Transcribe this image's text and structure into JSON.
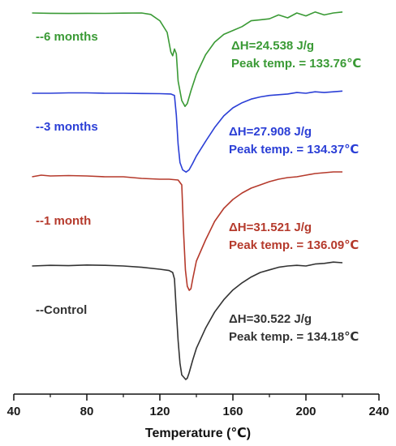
{
  "chart_data": {
    "type": "line",
    "xlabel": "Temperature (℃)",
    "ylabel": "",
    "xlim": [
      40,
      240
    ],
    "x_ticks": [
      40,
      80,
      120,
      160,
      200,
      240
    ],
    "grid": false,
    "legend": "none",
    "series": [
      {
        "name": "--6 months",
        "color": "#3a9a35",
        "annotation": [
          "ΔH=24.538 J/g",
          "Peak temp. = 133.76℃"
        ],
        "points": [
          [
            50,
            0.0
          ],
          [
            60,
            -0.003
          ],
          [
            70,
            -0.005
          ],
          [
            80,
            -0.003
          ],
          [
            90,
            -0.004
          ],
          [
            100,
            -0.002
          ],
          [
            110,
            0.0
          ],
          [
            115,
            -0.015
          ],
          [
            120,
            -0.08
          ],
          [
            124,
            -0.2
          ],
          [
            126,
            -0.4
          ],
          [
            127,
            -0.44
          ],
          [
            128,
            -0.37
          ],
          [
            129,
            -0.42
          ],
          [
            130,
            -0.7
          ],
          [
            132,
            -0.9
          ],
          [
            133.76,
            -0.96
          ],
          [
            135,
            -0.93
          ],
          [
            137,
            -0.8
          ],
          [
            140,
            -0.63
          ],
          [
            145,
            -0.43
          ],
          [
            150,
            -0.3
          ],
          [
            155,
            -0.22
          ],
          [
            160,
            -0.18
          ],
          [
            165,
            -0.14
          ],
          [
            170,
            -0.08
          ],
          [
            175,
            -0.07
          ],
          [
            180,
            -0.06
          ],
          [
            185,
            -0.02
          ],
          [
            190,
            -0.05
          ],
          [
            195,
            0.0
          ],
          [
            200,
            -0.03
          ],
          [
            205,
            0.01
          ],
          [
            210,
            -0.02
          ],
          [
            215,
            0.0
          ],
          [
            220,
            0.01
          ]
        ]
      },
      {
        "name": "--3 months",
        "color": "#2b3fd6",
        "annotation": [
          "ΔH=27.908 J/g",
          "Peak temp. = 134.37℃"
        ],
        "points": [
          [
            50,
            0.0
          ],
          [
            60,
            0.0
          ],
          [
            70,
            0.005
          ],
          [
            80,
            0.005
          ],
          [
            90,
            0.0
          ],
          [
            100,
            0.0
          ],
          [
            110,
            -0.003
          ],
          [
            120,
            -0.005
          ],
          [
            126,
            -0.01
          ],
          [
            128,
            -0.03
          ],
          [
            129,
            -0.3
          ],
          [
            130,
            -0.7
          ],
          [
            131,
            -0.95
          ],
          [
            132.5,
            -1.05
          ],
          [
            134.37,
            -1.08
          ],
          [
            136,
            -1.05
          ],
          [
            138,
            -0.96
          ],
          [
            140,
            -0.86
          ],
          [
            145,
            -0.66
          ],
          [
            150,
            -0.47
          ],
          [
            155,
            -0.31
          ],
          [
            160,
            -0.2
          ],
          [
            165,
            -0.13
          ],
          [
            170,
            -0.08
          ],
          [
            175,
            -0.05
          ],
          [
            180,
            -0.03
          ],
          [
            185,
            -0.02
          ],
          [
            190,
            -0.01
          ],
          [
            195,
            0.01
          ],
          [
            200,
            0.0
          ],
          [
            205,
            0.02
          ],
          [
            210,
            0.01
          ],
          [
            215,
            0.02
          ],
          [
            220,
            0.03
          ]
        ]
      },
      {
        "name": "--1 month",
        "color": "#b53a2c",
        "annotation": [
          "ΔH=31.521 J/g",
          "Peak temp. = 136.09℃"
        ],
        "points": [
          [
            50,
            0.0
          ],
          [
            55,
            0.02
          ],
          [
            60,
            0.01
          ],
          [
            70,
            0.015
          ],
          [
            80,
            0.01
          ],
          [
            90,
            0.0
          ],
          [
            100,
            0.0
          ],
          [
            110,
            -0.02
          ],
          [
            120,
            -0.03
          ],
          [
            125,
            -0.03
          ],
          [
            130,
            -0.04
          ],
          [
            132,
            -0.1
          ],
          [
            133,
            -0.7
          ],
          [
            134,
            -1.15
          ],
          [
            135,
            -1.35
          ],
          [
            136.09,
            -1.4
          ],
          [
            137,
            -1.38
          ],
          [
            138,
            -1.26
          ],
          [
            140,
            -1.04
          ],
          [
            145,
            -0.78
          ],
          [
            150,
            -0.55
          ],
          [
            155,
            -0.39
          ],
          [
            160,
            -0.28
          ],
          [
            165,
            -0.2
          ],
          [
            170,
            -0.14
          ],
          [
            175,
            -0.1
          ],
          [
            180,
            -0.06
          ],
          [
            185,
            -0.03
          ],
          [
            190,
            -0.01
          ],
          [
            195,
            0.0
          ],
          [
            200,
            0.02
          ],
          [
            205,
            0.04
          ],
          [
            210,
            0.05
          ],
          [
            215,
            0.06
          ],
          [
            220,
            0.06
          ]
        ]
      },
      {
        "name": "--Control",
        "color": "#333333",
        "annotation": [
          "ΔH=30.522 J/g",
          "Peak temp. = 134.18℃"
        ],
        "points": [
          [
            50,
            0.0
          ],
          [
            60,
            0.01
          ],
          [
            70,
            0.005
          ],
          [
            80,
            0.015
          ],
          [
            90,
            0.01
          ],
          [
            100,
            0.0
          ],
          [
            110,
            -0.02
          ],
          [
            120,
            -0.05
          ],
          [
            125,
            -0.07
          ],
          [
            127,
            -0.1
          ],
          [
            128,
            -0.2
          ],
          [
            129,
            -0.7
          ],
          [
            130,
            -1.15
          ],
          [
            131,
            -1.5
          ],
          [
            132,
            -1.68
          ],
          [
            134.18,
            -1.75
          ],
          [
            135,
            -1.73
          ],
          [
            136,
            -1.65
          ],
          [
            138,
            -1.45
          ],
          [
            140,
            -1.27
          ],
          [
            145,
            -0.96
          ],
          [
            150,
            -0.71
          ],
          [
            155,
            -0.52
          ],
          [
            160,
            -0.37
          ],
          [
            165,
            -0.26
          ],
          [
            170,
            -0.17
          ],
          [
            175,
            -0.1
          ],
          [
            180,
            -0.06
          ],
          [
            185,
            -0.02
          ],
          [
            190,
            0.0
          ],
          [
            195,
            0.01
          ],
          [
            200,
            0.0
          ],
          [
            205,
            0.03
          ],
          [
            210,
            0.04
          ],
          [
            215,
            0.06
          ],
          [
            220,
            0.05
          ]
        ]
      }
    ]
  }
}
